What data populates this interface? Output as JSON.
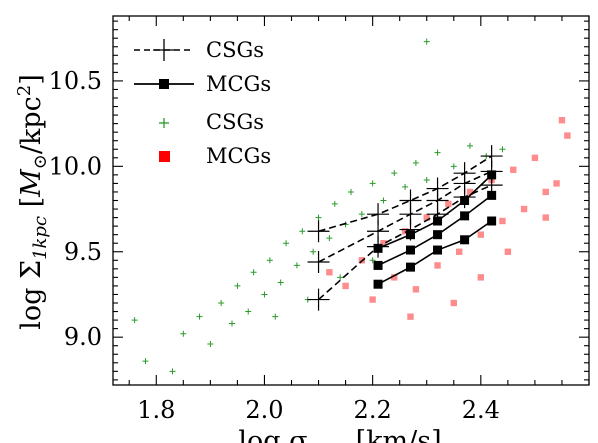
{
  "chart_data": {
    "type": "scatter",
    "xlabel": "log σ_{cent} [km/s]",
    "ylabel": "log Σ_{1kpc} [M_⊙/kpc^2]",
    "xlim": [
      1.72,
      2.6
    ],
    "ylim": [
      8.72,
      10.88
    ],
    "xticks": [
      "1.8",
      "2.0",
      "2.2",
      "2.4"
    ],
    "yticks": [
      "9.0",
      "9.5",
      "10.0",
      "10.5"
    ],
    "grid": false,
    "legend_position": "top-left",
    "legend": [
      {
        "label": "CSGs",
        "style": "dashed line with plus markers",
        "color": "#000000"
      },
      {
        "label": "MCGs",
        "style": "solid line with square markers",
        "color": "#000000"
      },
      {
        "label": "CSGs",
        "style": "plus markers",
        "color": "#2a9a2a"
      },
      {
        "label": "MCGs",
        "style": "square markers",
        "color": "#ff0000"
      }
    ],
    "scatter_series": [
      {
        "name": "CSGs",
        "marker": "plus",
        "color": "#2a9a2a",
        "points": [
          {
            "x": 1.76,
            "y": 9.1
          },
          {
            "x": 1.78,
            "y": 8.86
          },
          {
            "x": 1.83,
            "y": 8.8
          },
          {
            "x": 1.85,
            "y": 9.02
          },
          {
            "x": 1.88,
            "y": 9.12
          },
          {
            "x": 1.9,
            "y": 8.96
          },
          {
            "x": 1.92,
            "y": 9.2
          },
          {
            "x": 1.94,
            "y": 9.08
          },
          {
            "x": 1.95,
            "y": 9.3
          },
          {
            "x": 1.97,
            "y": 9.15
          },
          {
            "x": 1.98,
            "y": 9.38
          },
          {
            "x": 2.0,
            "y": 9.25
          },
          {
            "x": 2.01,
            "y": 9.45
          },
          {
            "x": 2.03,
            "y": 9.32
          },
          {
            "x": 2.04,
            "y": 9.55
          },
          {
            "x": 2.06,
            "y": 9.42
          },
          {
            "x": 2.07,
            "y": 9.62
          },
          {
            "x": 2.09,
            "y": 9.5
          },
          {
            "x": 2.1,
            "y": 9.7
          },
          {
            "x": 2.12,
            "y": 9.58
          },
          {
            "x": 2.13,
            "y": 9.78
          },
          {
            "x": 2.15,
            "y": 9.66
          },
          {
            "x": 2.16,
            "y": 9.85
          },
          {
            "x": 2.18,
            "y": 9.72
          },
          {
            "x": 2.2,
            "y": 9.9
          },
          {
            "x": 2.22,
            "y": 9.8
          },
          {
            "x": 2.24,
            "y": 9.96
          },
          {
            "x": 2.26,
            "y": 9.88
          },
          {
            "x": 2.28,
            "y": 10.02
          },
          {
            "x": 2.3,
            "y": 9.92
          },
          {
            "x": 2.32,
            "y": 10.08
          },
          {
            "x": 2.35,
            "y": 10.0
          },
          {
            "x": 2.38,
            "y": 10.12
          },
          {
            "x": 2.41,
            "y": 10.06
          },
          {
            "x": 2.44,
            "y": 10.1
          },
          {
            "x": 2.3,
            "y": 10.73
          },
          {
            "x": 2.02,
            "y": 9.12
          },
          {
            "x": 2.08,
            "y": 9.22
          },
          {
            "x": 2.14,
            "y": 9.35
          },
          {
            "x": 2.2,
            "y": 9.45
          }
        ]
      },
      {
        "name": "MCGs",
        "marker": "square",
        "color": "#ff0000",
        "points": [
          {
            "x": 2.12,
            "y": 9.38
          },
          {
            "x": 2.15,
            "y": 9.3
          },
          {
            "x": 2.18,
            "y": 9.45
          },
          {
            "x": 2.2,
            "y": 9.22
          },
          {
            "x": 2.22,
            "y": 9.55
          },
          {
            "x": 2.24,
            "y": 9.35
          },
          {
            "x": 2.26,
            "y": 9.62
          },
          {
            "x": 2.28,
            "y": 9.28
          },
          {
            "x": 2.3,
            "y": 9.7
          },
          {
            "x": 2.32,
            "y": 9.42
          },
          {
            "x": 2.34,
            "y": 9.78
          },
          {
            "x": 2.36,
            "y": 9.5
          },
          {
            "x": 2.38,
            "y": 9.85
          },
          {
            "x": 2.4,
            "y": 9.6
          },
          {
            "x": 2.42,
            "y": 9.92
          },
          {
            "x": 2.44,
            "y": 9.68
          },
          {
            "x": 2.46,
            "y": 9.98
          },
          {
            "x": 2.48,
            "y": 9.75
          },
          {
            "x": 2.5,
            "y": 10.05
          },
          {
            "x": 2.52,
            "y": 9.85
          },
          {
            "x": 2.54,
            "y": 9.9
          },
          {
            "x": 2.55,
            "y": 10.27
          },
          {
            "x": 2.56,
            "y": 10.18
          },
          {
            "x": 2.52,
            "y": 9.7
          },
          {
            "x": 2.35,
            "y": 9.2
          },
          {
            "x": 2.45,
            "y": 9.5
          },
          {
            "x": 2.27,
            "y": 9.12
          },
          {
            "x": 2.4,
            "y": 9.35
          }
        ]
      }
    ],
    "line_series": [
      {
        "name": "CSGs",
        "style": "dashed",
        "marker": "plus",
        "color": "#000000",
        "curves": [
          [
            {
              "x": 2.1,
              "y": 9.62
            },
            {
              "x": 2.21,
              "y": 9.72
            },
            {
              "x": 2.27,
              "y": 9.8
            },
            {
              "x": 2.32,
              "y": 9.87
            },
            {
              "x": 2.37,
              "y": 9.96
            },
            {
              "x": 2.42,
              "y": 10.06
            }
          ],
          [
            {
              "x": 2.1,
              "y": 9.44
            },
            {
              "x": 2.21,
              "y": 9.62
            },
            {
              "x": 2.27,
              "y": 9.72
            },
            {
              "x": 2.32,
              "y": 9.8
            },
            {
              "x": 2.37,
              "y": 9.9
            },
            {
              "x": 2.42,
              "y": 9.97
            }
          ],
          [
            {
              "x": 2.1,
              "y": 9.22
            },
            {
              "x": 2.21,
              "y": 9.53
            },
            {
              "x": 2.27,
              "y": 9.63
            },
            {
              "x": 2.32,
              "y": 9.72
            },
            {
              "x": 2.37,
              "y": 9.82
            },
            {
              "x": 2.42,
              "y": 9.89
            }
          ]
        ]
      },
      {
        "name": "MCGs",
        "style": "solid",
        "marker": "square",
        "color": "#000000",
        "curves": [
          [
            {
              "x": 2.21,
              "y": 9.52
            },
            {
              "x": 2.27,
              "y": 9.6
            },
            {
              "x": 2.32,
              "y": 9.68
            },
            {
              "x": 2.37,
              "y": 9.8
            },
            {
              "x": 2.42,
              "y": 9.95
            }
          ],
          [
            {
              "x": 2.21,
              "y": 9.42
            },
            {
              "x": 2.27,
              "y": 9.51
            },
            {
              "x": 2.32,
              "y": 9.6
            },
            {
              "x": 2.37,
              "y": 9.71
            },
            {
              "x": 2.42,
              "y": 9.83
            }
          ],
          [
            {
              "x": 2.21,
              "y": 9.31
            },
            {
              "x": 2.27,
              "y": 9.41
            },
            {
              "x": 2.32,
              "y": 9.51
            },
            {
              "x": 2.37,
              "y": 9.57
            },
            {
              "x": 2.42,
              "y": 9.68
            }
          ]
        ]
      }
    ]
  }
}
